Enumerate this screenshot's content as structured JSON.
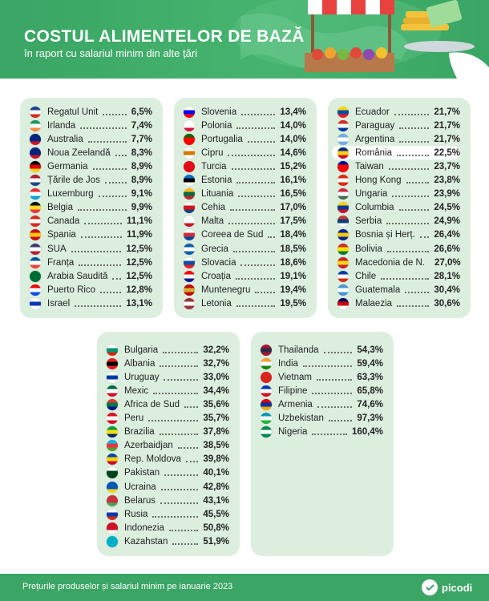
{
  "header": {
    "title": "COSTUL ALIMENTELOR DE BAZĂ",
    "subtitle": "în raport cu salariul minim din alte țări"
  },
  "footer": {
    "note": "Prețurile produselor și salariul minim pe ianuarie 2023",
    "logo": "picodi"
  },
  "colors": {
    "brand_green": "#3aa564",
    "card_background": "#dcefdf",
    "highlight": "#ffffff"
  },
  "chart_data": {
    "type": "table",
    "columns": [
      {
        "rows": [
          {
            "country": "Regatul Unit",
            "value": "6,5%",
            "flag": [
              "#1f3f8f",
              "#ffffff",
              "#d52b1e"
            ]
          },
          {
            "country": "Irlanda",
            "value": "7,4%",
            "flag": [
              "#169b62",
              "#ffffff",
              "#ff883e"
            ]
          },
          {
            "country": "Australia",
            "value": "7,7%",
            "flag": [
              "#00247d",
              "#00247d",
              "#cf142b"
            ]
          },
          {
            "country": "Noua Zeelandă",
            "value": "8,3%",
            "flag": [
              "#00247d",
              "#00247d",
              "#cc142b"
            ]
          },
          {
            "country": "Germania",
            "value": "8,9%",
            "flag": [
              "#000000",
              "#dd0000",
              "#ffce00"
            ]
          },
          {
            "country": "Țările de Jos",
            "value": "8,9%",
            "flag": [
              "#ae1c28",
              "#ffffff",
              "#21468b"
            ]
          },
          {
            "country": "Luxemburg",
            "value": "9,1%",
            "flag": [
              "#ed2939",
              "#ffffff",
              "#00a1de"
            ]
          },
          {
            "country": "Belgia",
            "value": "9,9%",
            "flag": [
              "#000000",
              "#fdda24",
              "#ef3340"
            ]
          },
          {
            "country": "Canada",
            "value": "11,1%",
            "flag": [
              "#d52b1e",
              "#ffffff",
              "#d52b1e"
            ]
          },
          {
            "country": "Spania",
            "value": "11,9%",
            "flag": [
              "#c60b1e",
              "#ffc400",
              "#c60b1e"
            ]
          },
          {
            "country": "SUA",
            "value": "12,5%",
            "flag": [
              "#3c3b6e",
              "#ffffff",
              "#b22234"
            ]
          },
          {
            "country": "Franța",
            "value": "12,5%",
            "flag": [
              "#0055a4",
              "#ffffff",
              "#ef4135"
            ]
          },
          {
            "country": "Arabia Saudită",
            "value": "12,5%",
            "flag": [
              "#006c35",
              "#006c35",
              "#006c35"
            ]
          },
          {
            "country": "Puerto Rico",
            "value": "12,8%",
            "flag": [
              "#ed0000",
              "#ffffff",
              "#0050f0"
            ]
          },
          {
            "country": "Israel",
            "value": "13,1%",
            "flag": [
              "#ffffff",
              "#0038b8",
              "#ffffff"
            ]
          }
        ]
      },
      {
        "rows": [
          {
            "country": "Slovenia",
            "value": "13,4%",
            "flag": [
              "#ffffff",
              "#0000ff",
              "#ff0000"
            ]
          },
          {
            "country": "Polonia",
            "value": "14,0%",
            "flag": [
              "#ffffff",
              "#ffffff",
              "#dc143c"
            ]
          },
          {
            "country": "Portugalia",
            "value": "14,0%",
            "flag": [
              "#006600",
              "#ff0000",
              "#ff0000"
            ]
          },
          {
            "country": "Cipru",
            "value": "14,6%",
            "flag": [
              "#ffffff",
              "#d57800",
              "#ffffff"
            ]
          },
          {
            "country": "Turcia",
            "value": "15,2%",
            "flag": [
              "#e30a17",
              "#e30a17",
              "#e30a17"
            ]
          },
          {
            "country": "Estonia",
            "value": "16,1%",
            "flag": [
              "#0072ce",
              "#000000",
              "#ffffff"
            ]
          },
          {
            "country": "Lituania",
            "value": "16,5%",
            "flag": [
              "#fdb913",
              "#006a44",
              "#c1272d"
            ]
          },
          {
            "country": "Cehia",
            "value": "17,0%",
            "flag": [
              "#ffffff",
              "#d7141a",
              "#11457e"
            ]
          },
          {
            "country": "Malta",
            "value": "17,5%",
            "flag": [
              "#ffffff",
              "#ffffff",
              "#cf142b"
            ]
          },
          {
            "country": "Coreea de Sud",
            "value": "18,4%",
            "flag": [
              "#ffffff",
              "#cd2e3a",
              "#0047a0"
            ]
          },
          {
            "country": "Grecia",
            "value": "18,5%",
            "flag": [
              "#0d5eaf",
              "#ffffff",
              "#0d5eaf"
            ]
          },
          {
            "country": "Slovacia",
            "value": "18,6%",
            "flag": [
              "#ffffff",
              "#0b4ea2",
              "#ee1c25"
            ]
          },
          {
            "country": "Croația",
            "value": "19,1%",
            "flag": [
              "#ff0000",
              "#ffffff",
              "#171796"
            ]
          },
          {
            "country": "Muntenegru",
            "value": "19,4%",
            "flag": [
              "#c40308",
              "#d4af37",
              "#c40308"
            ]
          },
          {
            "country": "Letonia",
            "value": "19,5%",
            "flag": [
              "#9e3039",
              "#ffffff",
              "#9e3039"
            ]
          }
        ]
      },
      {
        "rows": [
          {
            "country": "Ecuador",
            "value": "21,7%",
            "flag": [
              "#ffdd00",
              "#034ea2",
              "#ed1c24"
            ]
          },
          {
            "country": "Paraguay",
            "value": "21,7%",
            "flag": [
              "#d52b1e",
              "#ffffff",
              "#0038a8"
            ]
          },
          {
            "country": "Argentina",
            "value": "21,7%",
            "flag": [
              "#74acdf",
              "#ffffff",
              "#74acdf"
            ]
          },
          {
            "country": "România",
            "value": "22,5%",
            "flag": [
              "#002b7f",
              "#fcd116",
              "#ce1126"
            ],
            "highlight": true
          },
          {
            "country": "Taiwan",
            "value": "23,7%",
            "flag": [
              "#000095",
              "#fe0000",
              "#fe0000"
            ]
          },
          {
            "country": "Hong Kong",
            "value": "23,8%",
            "flag": [
              "#de2910",
              "#ffffff",
              "#de2910"
            ]
          },
          {
            "country": "Ungaria",
            "value": "23,9%",
            "flag": [
              "#cd2a3e",
              "#ffffff",
              "#436f4d"
            ]
          },
          {
            "country": "Columbia",
            "value": "24,5%",
            "flag": [
              "#fcd116",
              "#003893",
              "#ce1126"
            ]
          },
          {
            "country": "Serbia",
            "value": "24,9%",
            "flag": [
              "#c6363c",
              "#0c4076",
              "#ffffff"
            ]
          },
          {
            "country": "Bosnia și Herț.",
            "value": "26,4%",
            "flag": [
              "#002395",
              "#fecb00",
              "#002395"
            ]
          },
          {
            "country": "Bolivia",
            "value": "26,6%",
            "flag": [
              "#d52b1e",
              "#f9e300",
              "#007934"
            ]
          },
          {
            "country": "Macedonia de N.",
            "value": "27,0%",
            "flag": [
              "#ce2028",
              "#f9d616",
              "#ce2028"
            ]
          },
          {
            "country": "Chile",
            "value": "28,1%",
            "flag": [
              "#0039a6",
              "#ffffff",
              "#d52b1e"
            ]
          },
          {
            "country": "Guatemala",
            "value": "30,4%",
            "flag": [
              "#4997d0",
              "#ffffff",
              "#4997d0"
            ]
          },
          {
            "country": "Malaezia",
            "value": "30,6%",
            "flag": [
              "#010066",
              "#cc0001",
              "#ffffff"
            ]
          }
        ]
      },
      {
        "rows": [
          {
            "country": "Bulgaria",
            "value": "32,2%",
            "flag": [
              "#ffffff",
              "#00966e",
              "#d62612"
            ]
          },
          {
            "country": "Albania",
            "value": "32,7%",
            "flag": [
              "#e41e20",
              "#000000",
              "#e41e20"
            ]
          },
          {
            "country": "Uruguay",
            "value": "33,0%",
            "flag": [
              "#ffffff",
              "#0038a8",
              "#ffffff"
            ]
          },
          {
            "country": "Mexic",
            "value": "34,4%",
            "flag": [
              "#006847",
              "#ffffff",
              "#ce1126"
            ]
          },
          {
            "country": "Africa de Sud",
            "value": "35,6%",
            "flag": [
              "#e03c31",
              "#007749",
              "#001489"
            ]
          },
          {
            "country": "Peru",
            "value": "35,7%",
            "flag": [
              "#d91023",
              "#ffffff",
              "#d91023"
            ]
          },
          {
            "country": "Brazilia",
            "value": "37,8%",
            "flag": [
              "#009c3b",
              "#ffdf00",
              "#002776"
            ]
          },
          {
            "country": "Azerbaidjan",
            "value": "38,5%",
            "flag": [
              "#00b5e2",
              "#ef3340",
              "#509e2f"
            ]
          },
          {
            "country": "Rep. Moldova",
            "value": "39,8%",
            "flag": [
              "#0046ae",
              "#ffd200",
              "#cc092f"
            ]
          },
          {
            "country": "Pakistan",
            "value": "40,1%",
            "flag": [
              "#ffffff",
              "#01411c",
              "#01411c"
            ]
          },
          {
            "country": "Ucraina",
            "value": "42,8%",
            "flag": [
              "#0057b7",
              "#0057b7",
              "#ffd700"
            ]
          },
          {
            "country": "Belarus",
            "value": "43,1%",
            "flag": [
              "#c8313e",
              "#c8313e",
              "#4aa657"
            ]
          },
          {
            "country": "Rusia",
            "value": "45,5%",
            "flag": [
              "#ffffff",
              "#0039a6",
              "#d52b1e"
            ]
          },
          {
            "country": "Indonezia",
            "value": "50,8%",
            "flag": [
              "#ce1126",
              "#ce1126",
              "#ffffff"
            ]
          },
          {
            "country": "Kazahstan",
            "value": "51,9%",
            "flag": [
              "#00afca",
              "#00afca",
              "#00afca"
            ]
          }
        ]
      },
      {
        "rows": [
          {
            "country": "Thailanda",
            "value": "54,3%",
            "flag": [
              "#a51931",
              "#2d2a4a",
              "#a51931"
            ]
          },
          {
            "country": "India",
            "value": "59,4%",
            "flag": [
              "#ff9933",
              "#ffffff",
              "#138808"
            ]
          },
          {
            "country": "Vietnam",
            "value": "63,3%",
            "flag": [
              "#da251d",
              "#da251d",
              "#da251d"
            ]
          },
          {
            "country": "Filipine",
            "value": "65,8%",
            "flag": [
              "#0038a8",
              "#ffffff",
              "#ce1126"
            ]
          },
          {
            "country": "Armenia",
            "value": "74,6%",
            "flag": [
              "#d90012",
              "#0033a0",
              "#f2a800"
            ]
          },
          {
            "country": "Uzbekistan",
            "value": "97,3%",
            "flag": [
              "#0099b5",
              "#ffffff",
              "#1eb53a"
            ]
          },
          {
            "country": "Nigeria",
            "value": "160,4%",
            "flag": [
              "#008751",
              "#ffffff",
              "#008751"
            ]
          }
        ]
      }
    ]
  }
}
